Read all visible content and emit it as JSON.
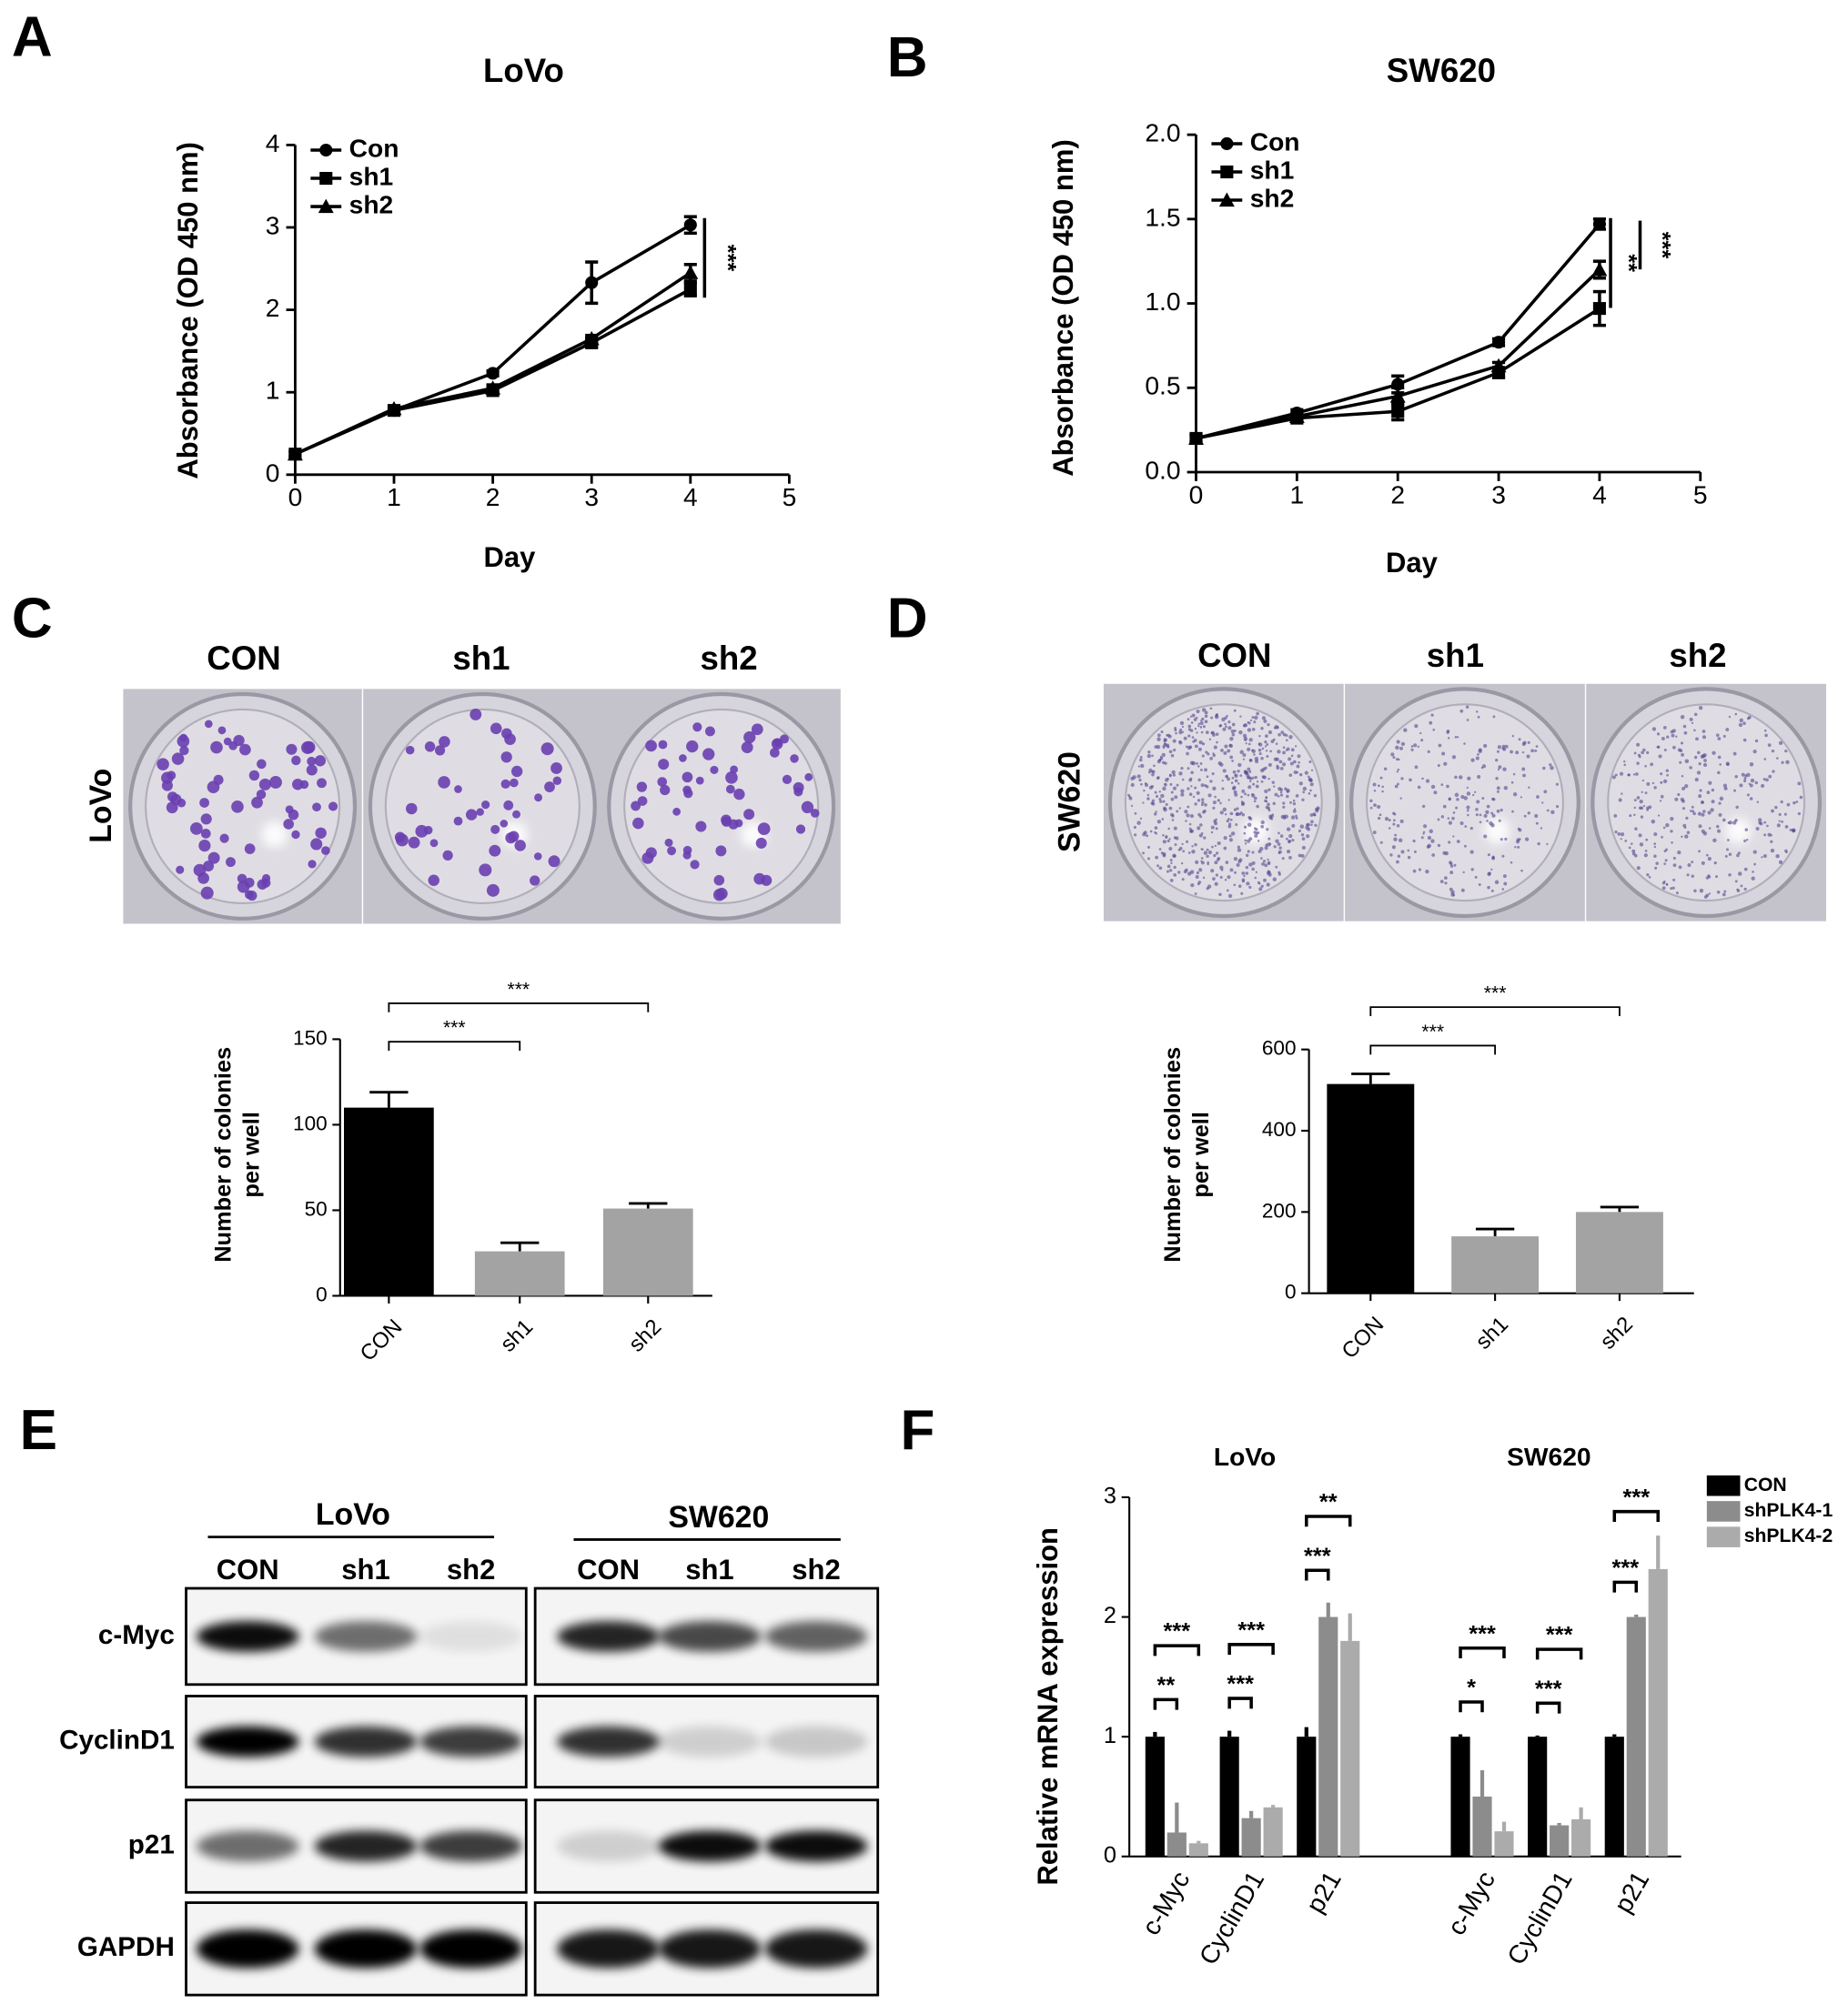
{
  "panel_labels": [
    "A",
    "B",
    "C",
    "D",
    "E",
    "F"
  ],
  "chart_data": [
    {
      "type": "line",
      "title": "LoVo",
      "x_label": "Day",
      "y_label": "Absorbance (OD 450 nm)",
      "x": [
        0,
        1,
        2,
        3,
        4
      ],
      "xlim": [
        0,
        5
      ],
      "xticks": [
        0,
        1,
        2,
        3,
        4,
        5
      ],
      "ylim": [
        0,
        4
      ],
      "yticks": [
        0,
        1,
        2,
        3,
        4
      ],
      "series": [
        {
          "name": "Con",
          "marker": "circle",
          "color": "#000000",
          "values": [
            0.25,
            0.78,
            1.23,
            2.33,
            3.03
          ],
          "errors": [
            0.03,
            0.03,
            0.03,
            0.25,
            0.1
          ]
        },
        {
          "name": "sh1",
          "marker": "square",
          "color": "#000000",
          "values": [
            0.25,
            0.78,
            1.02,
            1.6,
            2.25
          ],
          "errors": [
            0.03,
            0.03,
            0.04,
            0.05,
            0.08
          ]
        },
        {
          "name": "sh2",
          "marker": "triangle",
          "color": "#000000",
          "values": [
            0.25,
            0.8,
            1.05,
            1.65,
            2.45
          ],
          "errors": [
            0.03,
            0.03,
            0.04,
            0.04,
            0.1
          ]
        }
      ],
      "annotations": [
        "***"
      ]
    },
    {
      "type": "line",
      "title": "SW620",
      "x_label": "Day",
      "y_label": "Absorbance (OD 450 nm)",
      "x": [
        0,
        1,
        2,
        3,
        4
      ],
      "xlim": [
        0,
        5
      ],
      "xticks": [
        0,
        1,
        2,
        3,
        4,
        5
      ],
      "ylim": [
        0,
        2
      ],
      "yticks": [
        {
          "value": 0,
          "label": "0.0"
        },
        {
          "value": 0.5,
          "label": "0.5"
        },
        {
          "value": 1,
          "label": "1.0"
        },
        {
          "value": 1.5,
          "label": "1.5"
        },
        {
          "value": 2,
          "label": "2.0"
        }
      ],
      "series": [
        {
          "name": "Con",
          "marker": "circle",
          "color": "#000000",
          "values": [
            0.2,
            0.35,
            0.52,
            0.77,
            1.47
          ],
          "errors": [
            0.02,
            0.02,
            0.05,
            0.02,
            0.03
          ]
        },
        {
          "name": "sh1",
          "marker": "square",
          "color": "#000000",
          "values": [
            0.2,
            0.32,
            0.36,
            0.59,
            0.97
          ],
          "errors": [
            0.02,
            0.02,
            0.05,
            0.03,
            0.1
          ]
        },
        {
          "name": "sh2",
          "marker": "triangle",
          "color": "#000000",
          "values": [
            0.2,
            0.33,
            0.45,
            0.63,
            1.2
          ],
          "errors": [
            0.02,
            0.02,
            0.05,
            0.02,
            0.05
          ]
        }
      ],
      "annotations": [
        "**",
        "***"
      ]
    },
    {
      "type": "bar",
      "y_label": [
        "Number of colonies",
        "per well"
      ],
      "categories": [
        "CON",
        "sh1",
        "sh2"
      ],
      "values": [
        110,
        26,
        51
      ],
      "errors": [
        9,
        5,
        3
      ],
      "colors": [
        "#000000",
        "#a3a3a3",
        "#a3a3a3"
      ],
      "ylim": [
        0,
        150
      ],
      "yticks": [
        0,
        50,
        100,
        150
      ],
      "annotations": [
        "***",
        "***"
      ]
    },
    {
      "type": "bar",
      "y_label": [
        "Number of colonies",
        "per well"
      ],
      "categories": [
        "CON",
        "sh1",
        "sh2"
      ],
      "values": [
        515,
        140,
        200
      ],
      "errors": [
        25,
        18,
        12
      ],
      "colors": [
        "#000000",
        "#a3a3a3",
        "#a3a3a3"
      ],
      "ylim": [
        0,
        600
      ],
      "yticks": [
        0,
        200,
        400,
        600
      ],
      "annotations": [
        "***",
        "***"
      ]
    },
    {
      "type": "grouped_bar",
      "y_label": "Relative mRNA expression",
      "groups": [
        "LoVo",
        "SW620"
      ],
      "categories": [
        "c-Myc",
        "CyclinD1",
        "p21",
        "c-Myc",
        "CyclinD1",
        "p21"
      ],
      "ylim": [
        0,
        3
      ],
      "yticks": [
        0,
        1,
        2,
        3
      ],
      "legend": "right",
      "series": [
        {
          "name": "CON",
          "color": "#000000",
          "values": [
            1,
            1,
            1,
            1,
            1,
            1
          ],
          "errors": [
            0.04,
            0.05,
            0.08,
            0.02,
            0.01,
            0.02
          ]
        },
        {
          "name": "shPLK4-1",
          "color": "#8c8c8c",
          "values": [
            0.2,
            0.32,
            2.0,
            0.5,
            0.26,
            2.0
          ],
          "errors": [
            0.25,
            0.06,
            0.12,
            0.22,
            0.02,
            0.02
          ]
        },
        {
          "name": "shPLK4-2",
          "color": "#ababab",
          "values": [
            0.11,
            0.41,
            1.8,
            0.21,
            0.31,
            2.4
          ],
          "errors": [
            0.02,
            0.02,
            0.23,
            0.08,
            0.1,
            0.28
          ]
        }
      ],
      "annotations": [
        [
          "**",
          "***"
        ],
        [
          "***",
          "***"
        ],
        [
          "***",
          "**"
        ],
        [
          "*",
          "***"
        ],
        [
          "***",
          "***"
        ],
        [
          "***",
          "***"
        ]
      ]
    }
  ],
  "colony_images": [
    {
      "row_label": "LoVo",
      "columns": [
        "CON",
        "sh1",
        "sh2"
      ]
    },
    {
      "row_label": "SW620",
      "columns": [
        "CON",
        "sh1",
        "sh2"
      ]
    }
  ],
  "western_blot": {
    "groups": [
      {
        "name": "LoVo",
        "lanes": [
          "CON",
          "sh1",
          "sh2"
        ]
      },
      {
        "name": "SW620",
        "lanes": [
          "CON",
          "sh1",
          "sh2"
        ]
      }
    ],
    "rows": [
      "c-Myc",
      "CyclinD1",
      "p21",
      "GAPDH"
    ]
  }
}
